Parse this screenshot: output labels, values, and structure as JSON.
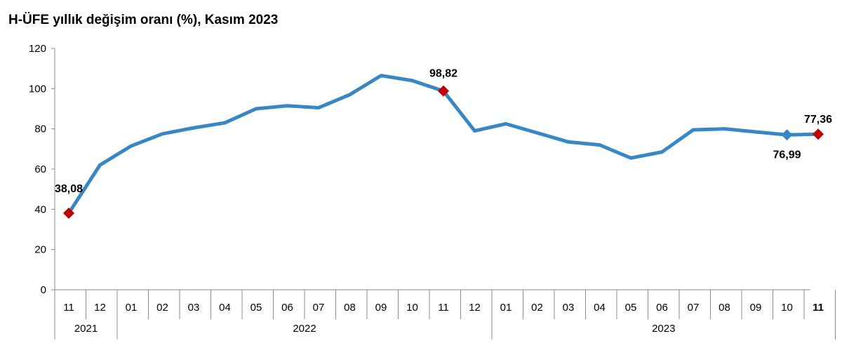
{
  "chart_data": {
    "type": "line",
    "title": "H-ÜFE yıllık değişim oranı (%), Kasım 2023",
    "xlabel": "",
    "ylabel": "",
    "ylim": [
      0,
      120
    ],
    "yticks": [
      0,
      20,
      40,
      60,
      80,
      100,
      120
    ],
    "grid": false,
    "legend": "none",
    "categories": [
      "11",
      "12",
      "01",
      "02",
      "03",
      "04",
      "05",
      "06",
      "07",
      "08",
      "09",
      "10",
      "11",
      "12",
      "01",
      "02",
      "03",
      "04",
      "05",
      "06",
      "07",
      "08",
      "09",
      "10",
      "11"
    ],
    "years": [
      {
        "label": "2021",
        "count": 2
      },
      {
        "label": "2022",
        "count": 12
      },
      {
        "label": "2023",
        "count": 11
      }
    ],
    "series": [
      {
        "values": [
          38.08,
          62.0,
          71.5,
          77.5,
          80.5,
          83.0,
          90.0,
          91.5,
          90.5,
          97.0,
          106.5,
          104.0,
          98.82,
          79.0,
          82.5,
          78.0,
          73.5,
          72.0,
          65.5,
          68.5,
          79.5,
          80.0,
          78.5,
          76.99,
          77.36
        ],
        "color": "#3787c6"
      }
    ],
    "highlights": [
      {
        "index": 0,
        "label": "38,08",
        "color": "#c00000"
      },
      {
        "index": 12,
        "label": "98,82",
        "color": "#c00000"
      },
      {
        "index": 23,
        "label": "76,99",
        "color": "#3787c6"
      },
      {
        "index": 24,
        "label": "77,36",
        "color": "#c00000"
      }
    ]
  }
}
